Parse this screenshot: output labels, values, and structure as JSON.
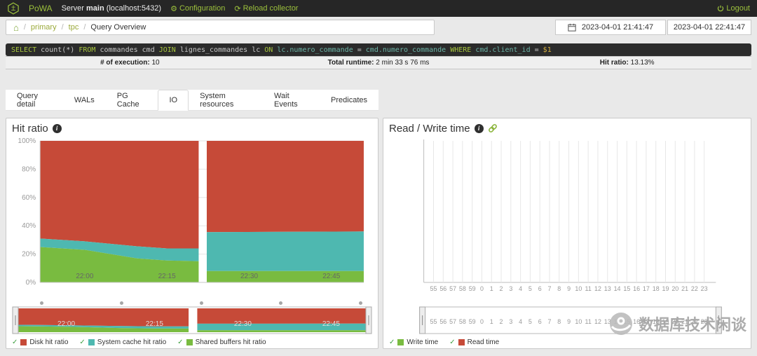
{
  "navbar": {
    "brand": "PoWA",
    "server_prefix": "Server",
    "server_name": "main",
    "server_host": "(localhost:5432)",
    "configuration": "Configuration",
    "reload": "Reload collector",
    "logout": "Logout"
  },
  "breadcrumb": {
    "items": [
      "primary",
      "tpc",
      "Query Overview"
    ]
  },
  "daterange": {
    "from": "2023-04-01 21:41:47",
    "to": "2023-04-01 22:41:47"
  },
  "query": {
    "tokens": [
      {
        "c": "kw",
        "t": "SELECT"
      },
      {
        "c": "plain",
        "t": " count(*) "
      },
      {
        "c": "kw",
        "t": "FROM"
      },
      {
        "c": "plain",
        "t": " commandes cmd "
      },
      {
        "c": "kw",
        "t": "JOIN"
      },
      {
        "c": "plain",
        "t": " lignes_commandes lc "
      },
      {
        "c": "kw",
        "t": "ON"
      },
      {
        "c": "ident",
        "t": " lc.numero_commande"
      },
      {
        "c": "plain",
        "t": " = "
      },
      {
        "c": "ident",
        "t": "cmd.numero_commande "
      },
      {
        "c": "kw",
        "t": "WHERE"
      },
      {
        "c": "ident",
        "t": " cmd.client_id"
      },
      {
        "c": "plain",
        "t": " = "
      },
      {
        "c": "var",
        "t": "$1"
      }
    ]
  },
  "stats": [
    {
      "label": "# of execution:",
      "value": "10"
    },
    {
      "label": "Total runtime:",
      "value": "2 min 33 s 76 ms"
    },
    {
      "label": "Hit ratio:",
      "value": "13.13%"
    }
  ],
  "tabs": [
    "Query detail",
    "WALs",
    "PG Cache",
    "IO",
    "System resources",
    "Wait Events",
    "Predicates"
  ],
  "active_tab": "IO",
  "panels": {
    "hit_ratio": {
      "title": "Hit ratio",
      "legend": [
        {
          "label": "Disk hit ratio",
          "color": "#c64a38"
        },
        {
          "label": "System cache hit ratio",
          "color": "#4eb8b0"
        },
        {
          "label": "Shared buffers hit ratio",
          "color": "#79bb40"
        }
      ]
    },
    "rw": {
      "title": "Read / Write time",
      "legend": [
        {
          "label": "Write time",
          "color": "#79bb40"
        },
        {
          "label": "Read time",
          "color": "#c64a38"
        }
      ]
    }
  },
  "watermark": {
    "text": "数据库技术闲谈"
  },
  "colors": {
    "accent_green": "#9cc13c",
    "disk_red": "#c64a38",
    "cache_teal": "#4eb8b0",
    "shared_green": "#79bb40",
    "navbar_bg": "#262626"
  },
  "chart_data": [
    {
      "type": "area",
      "title": "Hit ratio",
      "stacked": true,
      "ylim": [
        0,
        100
      ],
      "yticks": [
        0,
        20,
        40,
        60,
        80,
        100
      ],
      "ytick_suffix": "%",
      "grid": true,
      "legend_position": "bottom",
      "colors": {
        "disk": "#c64a38",
        "cache": "#4eb8b0",
        "shared": "#79bb40"
      },
      "xticks": [
        {
          "label": "22:00",
          "f": 0.138
        },
        {
          "label": "22:15",
          "f": 0.392
        },
        {
          "label": "22:30",
          "f": 0.646
        },
        {
          "label": "22:45",
          "f": 0.9
        }
      ],
      "series_names": [
        "Disk hit ratio",
        "System cache hit ratio",
        "Shared buffers hit ratio"
      ],
      "segments": [
        {
          "points": [
            {
              "f": 0.0,
              "shared": 25.0,
              "cache": 31.0,
              "disk": 100
            },
            {
              "f": 0.138,
              "shared": 23.0,
              "cache": 29.0,
              "disk": 100
            },
            {
              "f": 0.3,
              "shared": 17.0,
              "cache": 25.5,
              "disk": 100
            },
            {
              "f": 0.392,
              "shared": 15.5,
              "cache": 24.0,
              "disk": 100
            },
            {
              "f": 0.49,
              "shared": 15.0,
              "cache": 24.0,
              "disk": 100
            }
          ]
        },
        {
          "points": [
            {
              "f": 0.515,
              "shared": 8.0,
              "cache": 35.5,
              "disk": 100
            },
            {
              "f": 1.0,
              "shared": 8.0,
              "cache": 36.0,
              "disk": 100
            }
          ]
        }
      ]
    },
    {
      "type": "line",
      "title": "Read / Write time",
      "grid": true,
      "legend_position": "bottom",
      "series": [
        {
          "name": "Write time",
          "color": "#79bb40",
          "values": []
        },
        {
          "name": "Read time",
          "color": "#c64a38",
          "values": []
        }
      ],
      "xticks": [
        "55",
        "56",
        "57",
        "58",
        "59",
        "0",
        "1",
        "2",
        "3",
        "4",
        "5",
        "6",
        "7",
        "8",
        "9",
        "10",
        "11",
        "12",
        "13",
        "14",
        "15",
        "16",
        "17",
        "18",
        "19",
        "20",
        "21",
        "22",
        "23"
      ]
    }
  ]
}
